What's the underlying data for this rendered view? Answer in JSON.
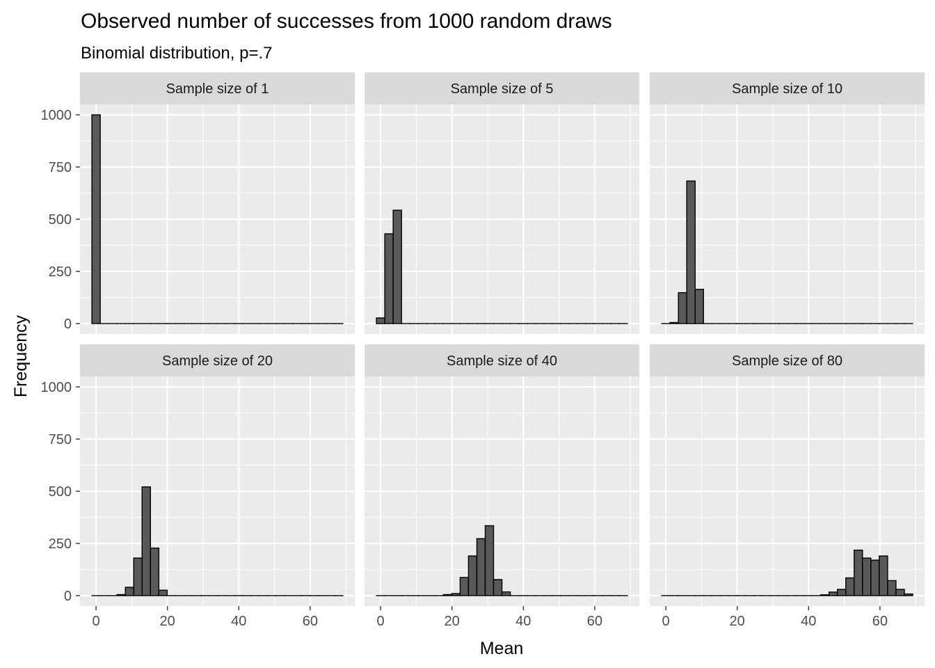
{
  "chart_data": {
    "type": "bar",
    "title": "Observed number of successes from  1000  random draws",
    "subtitle": "Binomial distribution, p=.7",
    "xlabel": "Mean",
    "ylabel": "Frequency",
    "xlim": [
      -4.5,
      72.5
    ],
    "ylim": [
      -50,
      1050
    ],
    "x_ticks": [
      0,
      20,
      40,
      60
    ],
    "y_ticks": [
      0,
      250,
      500,
      750,
      1000
    ],
    "grid": true,
    "facet_layout": {
      "rows": 2,
      "cols": 3
    },
    "bin_width": 2.345,
    "bin_start": -1.17,
    "bin_count": 30,
    "bar_fill": "#595959",
    "bar_stroke": "#000000",
    "panel_background": "#ebebeb",
    "strip_background": "#d9d9d9",
    "gridline_color": "#ffffff",
    "panels": [
      {
        "strip": "Sample size of  1",
        "values": [
          1000,
          0,
          0,
          0,
          0,
          0,
          0,
          0,
          0,
          0,
          0,
          0,
          0,
          0,
          0,
          0,
          0,
          0,
          0,
          0,
          0,
          0,
          0,
          0,
          0,
          0,
          0,
          0,
          0,
          0
        ]
      },
      {
        "strip": "Sample size of  5",
        "values": [
          27,
          430,
          543,
          0,
          0,
          0,
          0,
          0,
          0,
          0,
          0,
          0,
          0,
          0,
          0,
          0,
          0,
          0,
          0,
          0,
          0,
          0,
          0,
          0,
          0,
          0,
          0,
          0,
          0,
          0
        ]
      },
      {
        "strip": "Sample size of  10",
        "values": [
          0,
          5,
          148,
          683,
          164,
          0,
          0,
          0,
          0,
          0,
          0,
          0,
          0,
          0,
          0,
          0,
          0,
          0,
          0,
          0,
          0,
          0,
          0,
          0,
          0,
          0,
          0,
          0,
          0,
          0
        ]
      },
      {
        "strip": "Sample size of  20",
        "values": [
          0,
          0,
          0,
          5,
          40,
          180,
          521,
          228,
          26,
          0,
          0,
          0,
          0,
          0,
          0,
          0,
          0,
          0,
          0,
          0,
          0,
          0,
          0,
          0,
          0,
          0,
          0,
          0,
          0,
          0
        ]
      },
      {
        "strip": "Sample size of  40",
        "values": [
          0,
          0,
          0,
          0,
          0,
          0,
          0,
          0,
          5,
          10,
          87,
          190,
          273,
          335,
          77,
          18,
          0,
          0,
          0,
          0,
          0,
          0,
          0,
          0,
          0,
          0,
          0,
          0,
          0,
          0
        ]
      },
      {
        "strip": "Sample size of  80",
        "values": [
          0,
          0,
          0,
          0,
          0,
          0,
          0,
          0,
          0,
          0,
          0,
          0,
          0,
          0,
          0,
          0,
          0,
          0,
          0,
          4,
          17,
          30,
          85,
          218,
          180,
          170,
          190,
          72,
          30,
          8
        ]
      }
    ]
  }
}
